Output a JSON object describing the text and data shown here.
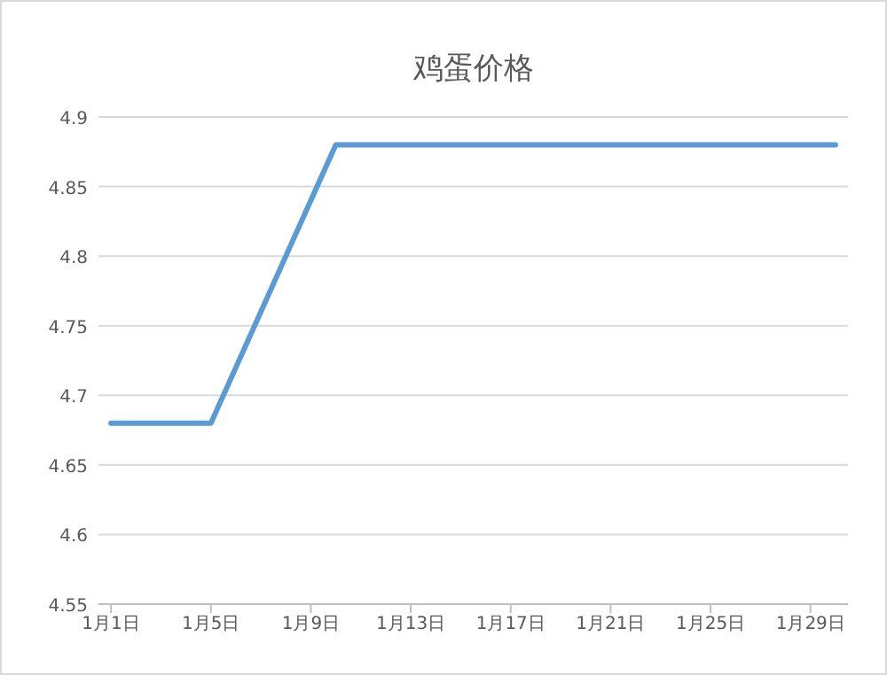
{
  "chart_data": {
    "type": "line",
    "title": "鸡蛋价格",
    "categories": [
      "1月1日",
      null,
      null,
      null,
      "1月5日",
      null,
      null,
      null,
      "1月9日",
      null,
      null,
      null,
      "1月13日",
      null,
      null,
      null,
      "1月17日",
      null,
      null,
      null,
      "1月21日",
      null,
      null,
      null,
      "1月25日",
      null,
      null,
      null,
      "1月29日",
      null
    ],
    "series": [
      {
        "color": "#5b9bd5",
        "values": [
          4.68,
          4.68,
          4.68,
          4.68,
          4.68,
          4.72,
          4.76,
          4.8,
          4.84,
          4.88,
          4.88,
          4.88,
          4.88,
          4.88,
          4.88,
          4.88,
          4.88,
          4.88,
          4.88,
          4.88,
          4.88,
          4.88,
          4.88,
          4.88,
          4.88,
          4.88,
          4.88,
          4.88,
          4.88,
          4.88
        ]
      }
    ],
    "ylim": [
      4.55,
      4.9
    ],
    "yticks": [
      4.55,
      4.6,
      4.65,
      4.7,
      4.75,
      4.8,
      4.85,
      4.9
    ],
    "grid": "y",
    "marker": "none",
    "line_style": "solid"
  }
}
